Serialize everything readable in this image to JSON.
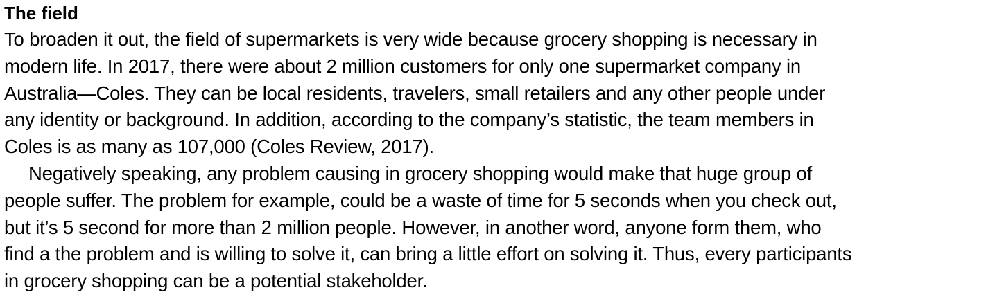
{
  "section": {
    "title": "The field",
    "paragraphs": [
      {
        "lines": [
          "To broaden it out, the field of supermarkets is very wide because grocery shopping is necessary in",
          "modern life. In 2017, there were about 2 million customers for only one supermarket company in",
          "Australia—Coles. They can be local residents, travelers, small retailers and any other people under",
          "any identity or background. In addition, according to the company’s statistic, the team members in",
          "Coles is as many as 107,000 (Coles Review, 2017)."
        ]
      },
      {
        "lines": [
          "Negatively speaking, any problem causing in grocery shopping would make that huge group of",
          "people suffer. The problem for example, could be a waste of time for 5 seconds when you check out,",
          "but it’s 5 second for more than 2 million people. However, in another word, anyone form them, who",
          "find a the problem and is willing to solve it, can bring a little effort on solving it. Thus, every participants",
          "in grocery shopping can be a potential stakeholder."
        ]
      }
    ]
  }
}
